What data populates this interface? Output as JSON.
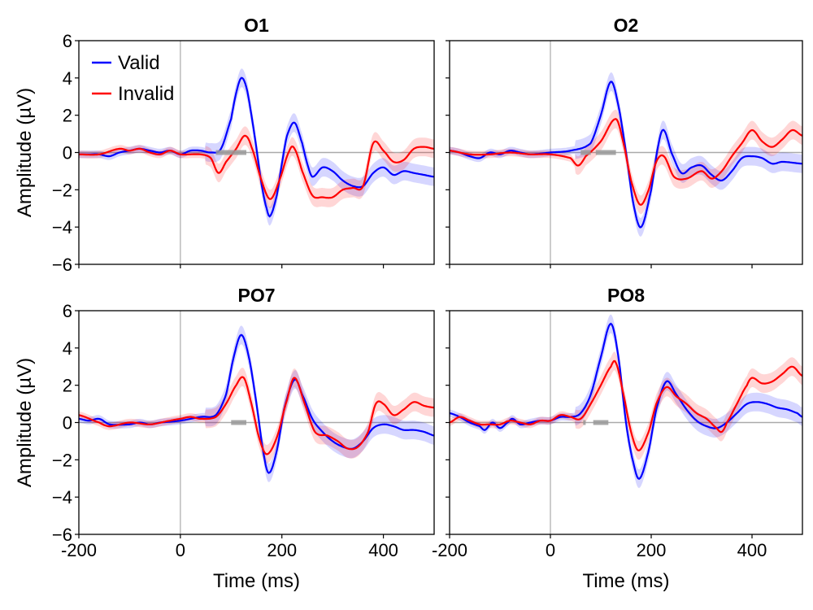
{
  "chart_data": {
    "type": "line",
    "xlabel": "Time (ms)",
    "ylabel": "Amplitude (µV)",
    "xlim": [
      -200,
      500
    ],
    "ylim": [
      -6,
      6
    ],
    "xticks": [
      -200,
      0,
      200,
      400
    ],
    "yticks": [
      -6,
      -4,
      -2,
      0,
      2,
      4,
      6
    ],
    "legend": {
      "placement": "top-left",
      "entries": [
        "Valid",
        "Invalid"
      ]
    },
    "colors": {
      "Valid": "#0000ff",
      "Invalid": "#ff0000",
      "significance": "#999999"
    },
    "confidence_band_halfwidth": {
      "pre_stimulus": 0.2,
      "post_stimulus": 0.5
    },
    "panels": [
      {
        "title": "O1",
        "significant_windows": [
          [
            70,
            130
          ]
        ],
        "series": [
          {
            "name": "Valid",
            "x": [
              -200,
              -180,
              -160,
              -140,
              -120,
              -100,
              -80,
              -60,
              -40,
              -20,
              0,
              20,
              40,
              60,
              80,
              100,
              110,
              120,
              130,
              140,
              150,
              160,
              170,
              177,
              190,
              200,
              210,
              225,
              240,
              250,
              260,
              280,
              300,
              320,
              340,
              360,
              380,
              400,
              420,
              440,
              460,
              480,
              500
            ],
            "y": [
              -0.1,
              -0.1,
              -0.1,
              -0.2,
              0,
              0.1,
              0.2,
              0.1,
              0,
              0.1,
              -0.1,
              0.1,
              0.1,
              0,
              0.2,
              1.8,
              3.2,
              4.0,
              3.5,
              2.0,
              0.2,
              -1.7,
              -3.0,
              -3.4,
              -2.3,
              -0.6,
              0.9,
              1.6,
              0.5,
              -0.6,
              -1.3,
              -0.8,
              -1.0,
              -1.5,
              -1.8,
              -1.8,
              -1.1,
              -0.8,
              -1.2,
              -1.0,
              -1.1,
              -1.2,
              -1.3
            ]
          },
          {
            "name": "Invalid",
            "x": [
              -200,
              -160,
              -120,
              -100,
              -80,
              -60,
              -40,
              -20,
              0,
              40,
              60,
              75,
              90,
              110,
              127,
              140,
              160,
              177,
              195,
              215,
              225,
              240,
              260,
              280,
              300,
              320,
              340,
              360,
              380,
              400,
              420,
              440,
              460,
              480,
              500
            ],
            "y": [
              -0.1,
              -0.1,
              0.2,
              0.1,
              0.2,
              0,
              -0.1,
              0.1,
              -0.1,
              -0.1,
              -0.3,
              -1.1,
              -0.5,
              0.2,
              0.9,
              0.3,
              -1.5,
              -2.5,
              -1.5,
              0.1,
              0.2,
              -1.0,
              -2.3,
              -2.4,
              -2.4,
              -2.0,
              -1.9,
              -1.8,
              0.5,
              0.1,
              -0.5,
              -0.4,
              0.2,
              0.3,
              0.2
            ]
          }
        ]
      },
      {
        "title": "O2",
        "significant_windows": [
          [
            60,
            80
          ],
          [
            90,
            130
          ]
        ],
        "series": [
          {
            "name": "Valid",
            "x": [
              -200,
              -180,
              -160,
              -140,
              -120,
              -100,
              -80,
              -60,
              -40,
              0,
              40,
              80,
              100,
              120,
              135,
              150,
              165,
              180,
              200,
              215,
              225,
              240,
              260,
              280,
              300,
              320,
              340,
              360,
              380,
              400,
              420,
              440,
              460,
              500
            ],
            "y": [
              0.1,
              0,
              -0.2,
              -0.3,
              0,
              -0.1,
              0.1,
              0,
              -0.1,
              0,
              0.1,
              0.5,
              2.0,
              3.8,
              2.5,
              0,
              -2.8,
              -4.0,
              -2.0,
              0.5,
              1.2,
              0,
              -1.1,
              -0.8,
              -0.7,
              -1.2,
              -1.5,
              -1.0,
              -0.3,
              -0.2,
              -0.3,
              -0.6,
              -0.5,
              -0.6
            ]
          },
          {
            "name": "Invalid",
            "x": [
              -200,
              -160,
              -120,
              -80,
              -40,
              0,
              40,
              55,
              70,
              100,
              130,
              145,
              160,
              178,
              195,
              210,
              225,
              245,
              270,
              300,
              320,
              340,
              360,
              380,
              400,
              420,
              440,
              460,
              480,
              500
            ],
            "y": [
              0.1,
              -0.1,
              -0.1,
              0,
              -0.1,
              -0.1,
              -0.3,
              -0.7,
              -0.2,
              0.6,
              1.8,
              0.5,
              -1.5,
              -2.8,
              -2.0,
              -0.5,
              -0.2,
              -1.3,
              -1.4,
              -1.0,
              -1.4,
              -1.0,
              -0.2,
              0.5,
              1.2,
              0.6,
              0.3,
              0.7,
              1.2,
              0.9
            ]
          }
        ]
      },
      {
        "title": "PO7",
        "significant_windows": [
          [
            100,
            130
          ]
        ],
        "series": [
          {
            "name": "Valid",
            "x": [
              -200,
              -180,
              -160,
              -140,
              -100,
              -80,
              -60,
              -40,
              0,
              40,
              70,
              90,
              105,
              120,
              135,
              150,
              165,
              175,
              190,
              205,
              225,
              240,
              260,
              280,
              300,
              320,
              340,
              360,
              380,
              400,
              420,
              440,
              460,
              480,
              500
            ],
            "y": [
              0.2,
              0.1,
              0.2,
              -0.1,
              -0.1,
              0,
              -0.1,
              0,
              0.1,
              0.3,
              0.4,
              1.5,
              3.5,
              4.7,
              3.5,
              1.0,
              -1.8,
              -2.7,
              -1.5,
              0.8,
              2.3,
              1.5,
              0.2,
              -0.5,
              -1.0,
              -1.3,
              -1.4,
              -1.0,
              -0.3,
              -0.1,
              -0.2,
              -0.4,
              -0.4,
              -0.5,
              -0.7
            ]
          },
          {
            "name": "Invalid",
            "x": [
              -200,
              -160,
              -140,
              -100,
              -60,
              -20,
              0,
              20,
              40,
              70,
              90,
              110,
              125,
              140,
              155,
              170,
              190,
              210,
              225,
              245,
              265,
              290,
              310,
              330,
              350,
              370,
              385,
              400,
              420,
              440,
              460,
              480,
              500
            ],
            "y": [
              0.4,
              0,
              -0.2,
              0,
              -0.1,
              0.1,
              0.2,
              0.3,
              0.2,
              0.3,
              1.0,
              2.0,
              2.4,
              1.0,
              -0.8,
              -1.7,
              -0.8,
              1.2,
              2.4,
              1.0,
              -0.5,
              -0.7,
              -1.0,
              -1.4,
              -1.3,
              -0.5,
              1.0,
              1.0,
              0.4,
              0.7,
              1.1,
              0.9,
              0.8
            ]
          }
        ]
      },
      {
        "title": "PO8",
        "significant_windows": [
          [
            65,
            70
          ],
          [
            85,
            115
          ]
        ],
        "series": [
          {
            "name": "Valid",
            "x": [
              -200,
              -180,
              -160,
              -140,
              -130,
              -115,
              -100,
              -85,
              -75,
              -60,
              -40,
              -20,
              0,
              20,
              40,
              60,
              80,
              100,
              120,
              135,
              150,
              165,
              177,
              195,
              210,
              230,
              250,
              270,
              290,
              310,
              330,
              350,
              370,
              390,
              410,
              430,
              450,
              470,
              490,
              500
            ],
            "y": [
              0.5,
              0.3,
              0,
              -0.2,
              -0.4,
              0,
              -0.3,
              0,
              0.2,
              -0.1,
              0,
              0.1,
              0.1,
              0.3,
              0.3,
              0.5,
              1.5,
              3.5,
              5.3,
              3.5,
              0,
              -2.2,
              -3.0,
              -1.5,
              0.7,
              2.2,
              1.5,
              0.7,
              0.1,
              -0.2,
              -0.3,
              0,
              0.5,
              1.0,
              1.1,
              1.0,
              0.8,
              0.7,
              0.5,
              0.3
            ]
          },
          {
            "name": "Invalid",
            "x": [
              -200,
              -180,
              -160,
              -140,
              -120,
              -100,
              -80,
              -60,
              -40,
              -20,
              0,
              20,
              40,
              60,
              80,
              100,
              120,
              130,
              145,
              160,
              175,
              195,
              210,
              230,
              250,
              270,
              290,
              310,
              330,
              340,
              350,
              370,
              390,
              400,
              420,
              440,
              460,
              480,
              500
            ],
            "y": [
              0,
              0.3,
              0.1,
              -0.1,
              -0.1,
              -0.1,
              0.1,
              0,
              -0.1,
              0.1,
              0.1,
              0.4,
              0.3,
              0.2,
              1.0,
              2.0,
              3.0,
              3.2,
              1.5,
              -0.5,
              -1.5,
              -0.5,
              1.0,
              1.9,
              1.4,
              1.0,
              0.5,
              0.2,
              -0.3,
              -0.5,
              0,
              1.0,
              2.0,
              2.4,
              2.1,
              2.2,
              2.6,
              3.0,
              2.5
            ]
          }
        ]
      }
    ]
  }
}
